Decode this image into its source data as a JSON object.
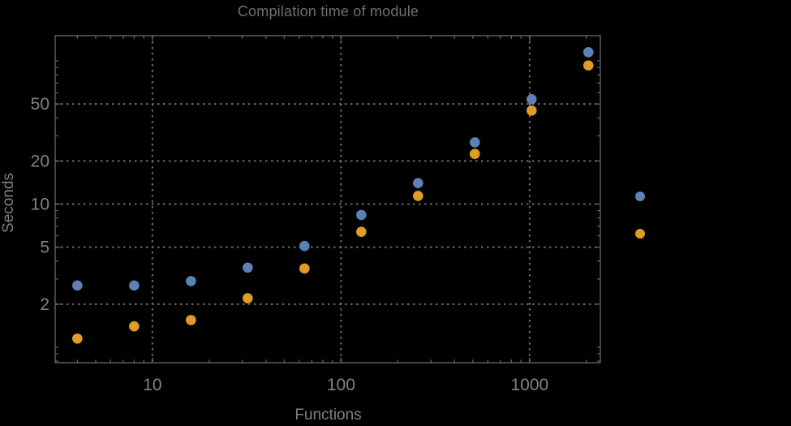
{
  "title": "Compilation time of module",
  "chart_data": {
    "type": "scatter",
    "title": "Compilation time of module",
    "xlabel": "Functions",
    "ylabel": "Seconds",
    "x_scale": "log",
    "y_scale": "log",
    "xlim": [
      3.05,
      2370
    ],
    "ylim": [
      0.78,
      150
    ],
    "x": [
      4,
      8,
      16,
      32,
      64,
      128,
      256,
      512,
      1024,
      2048
    ],
    "series": [
      {
        "name": "series-1-blue",
        "color": "#5e81b5",
        "values": [
          2.7,
          2.7,
          2.9,
          3.6,
          5.1,
          8.4,
          14,
          27,
          54,
          115
        ]
      },
      {
        "name": "series-2-orange",
        "color": "#e19c24",
        "values": [
          1.15,
          1.4,
          1.55,
          2.2,
          3.55,
          6.4,
          11.4,
          22.4,
          45,
          93
        ]
      }
    ],
    "x_major_ticks": [
      10,
      100,
      1000
    ],
    "x_major_tick_labels": [
      "10",
      "100",
      "1000"
    ],
    "x_minor_ticks": [
      4,
      5,
      6,
      7,
      8,
      9,
      20,
      30,
      40,
      50,
      60,
      70,
      80,
      90,
      200,
      300,
      400,
      500,
      600,
      700,
      800,
      900,
      2000
    ],
    "y_major_ticks": [
      2,
      5,
      10,
      20,
      50
    ],
    "y_major_tick_labels": [
      "2",
      "5",
      "10",
      "20",
      "50"
    ],
    "y_minor_ticks": [
      0.8,
      0.9,
      1,
      3,
      4,
      6,
      7,
      8,
      9,
      30,
      40,
      60,
      70,
      80,
      90,
      100
    ],
    "grid": {
      "style": "dotted",
      "x_values": [
        10,
        100,
        1000
      ],
      "y_values": [
        2,
        5,
        10,
        20,
        50
      ]
    },
    "legend": {
      "position": "right-outside-center",
      "labels_visible": false,
      "markers": [
        {
          "series": "series-1-blue",
          "color": "#5e81b5"
        },
        {
          "series": "series-2-orange",
          "color": "#e19c24"
        }
      ]
    },
    "colors": {
      "background": "#000000",
      "frame": "#696969",
      "gridline": "#6e6e6e",
      "tick_label": "#828282",
      "title_text": "#6f6f6f"
    }
  }
}
